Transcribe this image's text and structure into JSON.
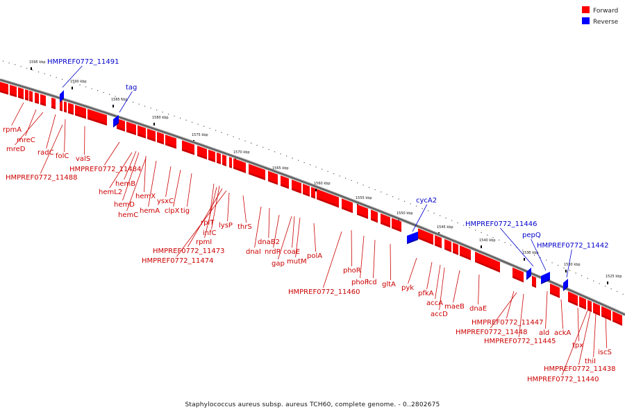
{
  "legend": {
    "forward": {
      "label": "Forward",
      "color": "#ff0000"
    },
    "reverse": {
      "label": "Reverse",
      "color": "#0000ff"
    }
  },
  "footer": "Staphylococcus aureus subsp. aureus TCH60, complete genome. - 0..2802675",
  "ticks": [
    "1595 kbp",
    "1590 kbp",
    "1585 kbp",
    "1580 kbp",
    "1575 kbp",
    "1570 kbp",
    "1565 kbp",
    "1560 kbp",
    "1555 kbp",
    "1550 kbp",
    "1545 kbp",
    "1540 kbp",
    "1535 kbp",
    "1530 kbp",
    "1525 kbp"
  ],
  "forward_labels": [
    "rpmA",
    "mreC",
    "mreD",
    "radC",
    "folC",
    "valS",
    "HMPREF0772_11484",
    "HMPREF0772_11488",
    "hemB",
    "hemL2",
    "hemX",
    "hemD",
    "hemA",
    "hemC",
    "ysxC",
    "clpX",
    "tig",
    "rplT",
    "infC",
    "rpmI",
    "lysP",
    "thrS",
    "HMPREF0772_11473",
    "HMPREF0772_11474",
    "dnaB2",
    "dnaI",
    "nrdR",
    "coaE",
    "mutM",
    "gap",
    "polA",
    "phoR",
    "phoP",
    "icd",
    "gltA",
    "HMPREF0772_11460",
    "pyk",
    "pfkA",
    "accA",
    "accD",
    "maeB",
    "dnaE",
    "HMPREF0772_11447",
    "HMPREF0772_11448",
    "HMPREF0772_11445",
    "ald",
    "ackA",
    "tpx",
    "iscS",
    "thiI",
    "HMPREF0772_11438",
    "HMPREF0772_11440"
  ],
  "reverse_labels": [
    "HMPREF0772_11491",
    "tag",
    "cycA2",
    "HMPREF0772_11446",
    "pepQ",
    "HMPREF0772_11442"
  ]
}
